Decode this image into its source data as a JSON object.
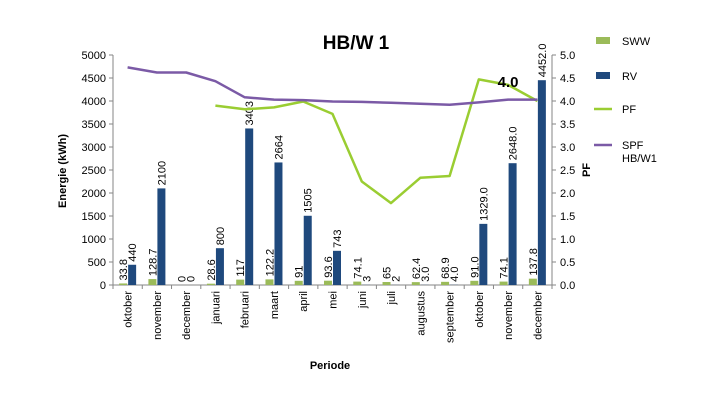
{
  "chart_data": {
    "type": "bar",
    "title": "HB/W 1",
    "xlabel": "Periode",
    "ylabel": "Energie (kWh)",
    "y2label": "PF",
    "ylim": [
      0,
      5000
    ],
    "yticks": [
      0,
      500,
      1000,
      1500,
      2000,
      2500,
      3000,
      3500,
      4000,
      4500,
      5000
    ],
    "y2lim": [
      0,
      5
    ],
    "y2ticks": [
      "0.0",
      "0.5",
      "1.0",
      "1.5",
      "2.0",
      "2.5",
      "3.0",
      "3.5",
      "4.0",
      "4.5",
      "5.0"
    ],
    "categories": [
      "oktober",
      "november",
      "december",
      "januari",
      "februari",
      "maart",
      "april",
      "mei",
      "juni",
      "juli",
      "augustus",
      "september",
      "oktober",
      "november",
      "december"
    ],
    "legend_position": "right",
    "grid": false,
    "series": [
      {
        "name": "SWW",
        "kind": "bar",
        "color": "#9bbb59",
        "axis": "left",
        "values": [
          33.8,
          128.7,
          0,
          28.6,
          117,
          122.2,
          91,
          93.6,
          74.1,
          65,
          62.4,
          68.9,
          91.0,
          74.1,
          137.8
        ],
        "labels": [
          "33.8",
          "128.7",
          "0",
          "28.6",
          "117",
          "122.2",
          "91",
          "93.6",
          "74.1",
          "65",
          "62.4",
          "68.9",
          "91.0",
          "74.1",
          "137.8"
        ]
      },
      {
        "name": "RV",
        "kind": "bar",
        "color": "#1f497d",
        "axis": "left",
        "values": [
          440,
          2100,
          0,
          800,
          3403,
          2664,
          1505,
          743,
          3,
          2,
          3.0,
          4.0,
          1329.0,
          2648.0,
          4452.0
        ],
        "labels": [
          "440",
          "2100",
          "0",
          "800",
          "3403",
          "2664",
          "1505",
          "743",
          "3",
          "2",
          "3.0",
          "4.0",
          "1329.0",
          "2648.0",
          "4452.0"
        ]
      },
      {
        "name": "PF",
        "kind": "line",
        "color": "#9acd32",
        "axis": "right",
        "values": [
          null,
          null,
          null,
          3.9,
          3.82,
          3.86,
          3.99,
          3.72,
          2.25,
          1.78,
          2.33,
          2.37,
          4.47,
          4.35,
          4.0
        ]
      },
      {
        "name": "SPF HB/W1",
        "name_lines": [
          "SPF",
          "HB/W1"
        ],
        "kind": "line",
        "color": "#7b5aa6",
        "axis": "right",
        "values": [
          4.73,
          4.62,
          4.62,
          4.43,
          4.08,
          4.03,
          4.02,
          3.99,
          3.98,
          3.96,
          3.94,
          3.92,
          3.97,
          4.03,
          4.03
        ]
      }
    ],
    "annotations": [
      {
        "text": "4.0",
        "category_index": 13,
        "axis": "right",
        "y": 4.0
      }
    ]
  }
}
